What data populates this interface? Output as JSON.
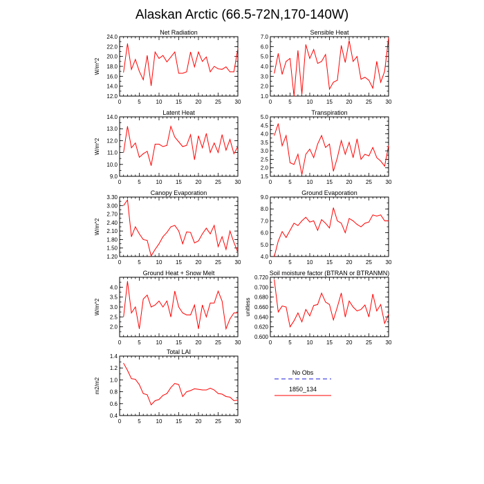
{
  "figure": {
    "title": "Alaskan Arctic (66.5-72N,170-140W)"
  },
  "legend": {
    "entries": [
      {
        "label": "No Obs",
        "color": "#8c8cf0",
        "dashed": true
      },
      {
        "label": "1850_134",
        "color": "#ff0000",
        "dashed": false
      }
    ]
  },
  "chart_data": [
    {
      "type": "line",
      "title": "Net Radiation",
      "ylabel": "W/m^2",
      "xlim": [
        0,
        30
      ],
      "ylim": [
        12,
        24
      ],
      "xticks": [
        0,
        5,
        10,
        15,
        20,
        25,
        30
      ],
      "yticks": [
        12,
        14,
        16,
        18,
        20,
        22,
        24
      ],
      "ytick_labels": [
        "12.0",
        "14.0",
        "16.0",
        "18.0",
        "20.0",
        "22.0",
        "24.0"
      ],
      "series": [
        {
          "name": "1850_134",
          "color": "#ff0000",
          "x": [
            1,
            2,
            3,
            4,
            5,
            6,
            7,
            8,
            9,
            10,
            11,
            12,
            13,
            14,
            15,
            16,
            17,
            18,
            19,
            20,
            21,
            22,
            23,
            24,
            25,
            26,
            27,
            28,
            29,
            30
          ],
          "values": [
            16.8,
            22.6,
            17.4,
            19.4,
            17.0,
            15.3,
            20.2,
            14.1,
            20.9,
            19.6,
            20.2,
            18.9,
            19.9,
            20.9,
            16.6,
            16.6,
            16.9,
            20.9,
            17.9,
            20.9,
            19.0,
            19.9,
            16.9,
            18.0,
            17.5,
            17.4,
            17.9,
            16.9,
            16.9,
            21.6
          ]
        }
      ]
    },
    {
      "type": "line",
      "title": "Sensible Heat",
      "ylabel": "",
      "xlim": [
        0,
        30
      ],
      "ylim": [
        1,
        7
      ],
      "xticks": [
        0,
        5,
        10,
        15,
        20,
        25,
        30
      ],
      "yticks": [
        1,
        2,
        3,
        4,
        5,
        6,
        7
      ],
      "ytick_labels": [
        "1.0",
        "2.0",
        "3.0",
        "4.0",
        "5.0",
        "6.0",
        "7.0"
      ],
      "series": [
        {
          "name": "1850_134",
          "color": "#ff0000",
          "x": [
            1,
            2,
            3,
            4,
            5,
            6,
            7,
            8,
            9,
            10,
            11,
            12,
            13,
            14,
            15,
            16,
            17,
            18,
            19,
            20,
            21,
            22,
            23,
            24,
            25,
            26,
            27,
            28,
            29,
            30
          ],
          "values": [
            3.3,
            5.3,
            3.2,
            4.5,
            4.8,
            1.0,
            5.6,
            1.2,
            6.2,
            4.8,
            5.7,
            4.3,
            4.5,
            5.2,
            1.7,
            2.4,
            2.6,
            6.1,
            4.4,
            6.6,
            4.5,
            5.0,
            2.7,
            2.9,
            2.6,
            1.8,
            4.5,
            2.4,
            3.5,
            6.9
          ]
        }
      ]
    },
    {
      "type": "line",
      "title": "Latent Heat",
      "ylabel": "W/m^2",
      "xlim": [
        0,
        30
      ],
      "ylim": [
        9,
        14
      ],
      "xticks": [
        0,
        5,
        10,
        15,
        20,
        25,
        30
      ],
      "yticks": [
        9,
        10,
        11,
        12,
        13,
        14
      ],
      "ytick_labels": [
        "9.0",
        "10.0",
        "11.0",
        "12.0",
        "13.0",
        "14.0"
      ],
      "series": [
        {
          "name": "1850_134",
          "color": "#ff0000",
          "x": [
            1,
            2,
            3,
            4,
            5,
            6,
            7,
            8,
            9,
            10,
            11,
            12,
            13,
            14,
            15,
            16,
            17,
            18,
            19,
            20,
            21,
            22,
            23,
            24,
            25,
            26,
            27,
            28,
            29,
            30
          ],
          "values": [
            11.0,
            13.2,
            11.4,
            11.8,
            10.6,
            10.9,
            11.1,
            9.9,
            11.7,
            11.7,
            11.5,
            11.6,
            13.2,
            12.3,
            11.9,
            11.5,
            11.6,
            12.5,
            10.4,
            12.4,
            11.4,
            12.6,
            11.0,
            11.8,
            11.0,
            12.5,
            11.2,
            12.1,
            10.9,
            11.5
          ]
        }
      ]
    },
    {
      "type": "line",
      "title": "Transpiration",
      "ylabel": "",
      "xlim": [
        0,
        30
      ],
      "ylim": [
        1.5,
        5.0
      ],
      "xticks": [
        0,
        5,
        10,
        15,
        20,
        25,
        30
      ],
      "yticks": [
        1.5,
        2.0,
        2.5,
        3.0,
        3.5,
        4.0,
        4.5,
        5.0
      ],
      "ytick_labels": [
        "1.5",
        "2.0",
        "2.5",
        "3.0",
        "3.5",
        "4.0",
        "4.5",
        "5.0"
      ],
      "series": [
        {
          "name": "1850_134",
          "color": "#ff0000",
          "x": [
            1,
            2,
            3,
            4,
            5,
            6,
            7,
            8,
            9,
            10,
            11,
            12,
            13,
            14,
            15,
            16,
            17,
            18,
            19,
            20,
            21,
            22,
            23,
            24,
            25,
            26,
            27,
            28,
            29,
            30
          ],
          "values": [
            3.9,
            4.6,
            3.3,
            3.9,
            2.3,
            2.2,
            2.8,
            1.6,
            2.8,
            3.1,
            2.6,
            3.4,
            3.9,
            3.2,
            3.4,
            1.8,
            2.6,
            3.6,
            2.8,
            3.5,
            2.6,
            3.7,
            2.5,
            2.8,
            2.7,
            3.2,
            2.6,
            2.4,
            2.1,
            3.3
          ]
        }
      ]
    },
    {
      "type": "line",
      "title": "Canopy Evaporation",
      "ylabel": "W/m^2",
      "xlim": [
        0,
        30
      ],
      "ylim": [
        1.2,
        3.3
      ],
      "xticks": [
        0,
        5,
        10,
        15,
        20,
        25,
        30
      ],
      "yticks": [
        1.2,
        1.5,
        1.8,
        2.1,
        2.4,
        2.7,
        3.0,
        3.3
      ],
      "ytick_labels": [
        "1.20",
        "1.50",
        "1.80",
        "2.10",
        "2.40",
        "2.70",
        "3.00",
        "3.30"
      ],
      "series": [
        {
          "name": "1850_134",
          "color": "#ff0000",
          "x": [
            1,
            2,
            3,
            4,
            5,
            6,
            7,
            8,
            9,
            10,
            11,
            12,
            13,
            14,
            15,
            16,
            17,
            18,
            19,
            20,
            21,
            22,
            23,
            24,
            25,
            26,
            27,
            28,
            29,
            30
          ],
          "values": [
            3.0,
            3.2,
            1.9,
            2.25,
            2.0,
            1.8,
            1.77,
            1.22,
            1.45,
            1.65,
            1.9,
            2.05,
            2.25,
            2.3,
            2.1,
            1.65,
            2.07,
            2.05,
            1.68,
            1.75,
            2.0,
            2.2,
            2.0,
            2.3,
            1.55,
            1.9,
            1.45,
            2.1,
            1.7,
            1.35
          ]
        }
      ]
    },
    {
      "type": "line",
      "title": "Ground Evaporation",
      "ylabel": "",
      "xlim": [
        0,
        30
      ],
      "ylim": [
        4,
        9
      ],
      "xticks": [
        0,
        5,
        10,
        15,
        20,
        25,
        30
      ],
      "yticks": [
        4,
        5,
        6,
        7,
        8,
        9
      ],
      "ytick_labels": [
        "4.0",
        "5.0",
        "6.0",
        "7.0",
        "8.0",
        "9.0"
      ],
      "series": [
        {
          "name": "1850_134",
          "color": "#ff0000",
          "x": [
            1,
            2,
            3,
            4,
            5,
            6,
            7,
            8,
            9,
            10,
            11,
            12,
            13,
            14,
            15,
            16,
            17,
            18,
            19,
            20,
            21,
            22,
            23,
            24,
            25,
            26,
            27,
            28,
            29,
            30
          ],
          "values": [
            4.0,
            5.3,
            6.1,
            5.6,
            6.2,
            6.8,
            6.6,
            7.0,
            7.3,
            6.9,
            7.0,
            6.2,
            7.1,
            6.8,
            6.4,
            8.1,
            7.0,
            6.8,
            6.0,
            7.2,
            7.0,
            6.7,
            6.5,
            6.8,
            6.9,
            7.5,
            7.4,
            7.5,
            7.0,
            7.0
          ]
        }
      ]
    },
    {
      "type": "line",
      "title": "Ground Heat + Snow Melt",
      "ylabel": "W/m^2",
      "xlim": [
        0,
        30
      ],
      "ylim": [
        1.5,
        4.5
      ],
      "xticks": [
        0,
        5,
        10,
        15,
        20,
        25,
        30
      ],
      "yticks": [
        2.0,
        2.5,
        3.0,
        3.5,
        4.0
      ],
      "ytick_labels": [
        "2.0",
        "2.5",
        "3.0",
        "3.5",
        "4.0"
      ],
      "series": [
        {
          "name": "1850_134",
          "color": "#ff0000",
          "x": [
            1,
            2,
            3,
            4,
            5,
            6,
            7,
            8,
            9,
            10,
            11,
            12,
            13,
            14,
            15,
            16,
            17,
            18,
            19,
            20,
            21,
            22,
            23,
            24,
            25,
            26,
            27,
            28,
            29,
            30
          ],
          "values": [
            2.5,
            4.3,
            2.7,
            3.0,
            1.9,
            3.4,
            3.6,
            3.0,
            3.1,
            3.3,
            3.0,
            3.3,
            2.5,
            3.8,
            3.0,
            2.7,
            2.6,
            2.6,
            3.1,
            1.9,
            3.1,
            2.5,
            3.2,
            3.2,
            3.8,
            3.3,
            1.9,
            2.4,
            2.7,
            2.7
          ]
        }
      ]
    },
    {
      "type": "line",
      "title": "Soil moisture factor (BTRAN or BTRANMN)",
      "ylabel": "unitless",
      "xlim": [
        0,
        30
      ],
      "ylim": [
        0.6,
        0.72
      ],
      "xticks": [
        0,
        5,
        10,
        15,
        20,
        25,
        30
      ],
      "yticks": [
        0.6,
        0.62,
        0.64,
        0.66,
        0.68,
        0.7,
        0.72
      ],
      "ytick_labels": [
        "0.600",
        "0.620",
        "0.640",
        "0.660",
        "0.680",
        "0.700",
        "0.720"
      ],
      "series": [
        {
          "name": "1850_134",
          "color": "#ff0000",
          "x": [
            1,
            2,
            3,
            4,
            5,
            6,
            7,
            8,
            9,
            10,
            11,
            12,
            13,
            14,
            15,
            16,
            17,
            18,
            19,
            20,
            21,
            22,
            23,
            24,
            25,
            26,
            27,
            28,
            29,
            30
          ],
          "values": [
            0.715,
            0.65,
            0.662,
            0.66,
            0.62,
            0.632,
            0.648,
            0.63,
            0.655,
            0.642,
            0.663,
            0.665,
            0.688,
            0.67,
            0.665,
            0.634,
            0.66,
            0.688,
            0.64,
            0.672,
            0.66,
            0.652,
            0.655,
            0.664,
            0.64,
            0.686,
            0.652,
            0.665,
            0.627,
            0.645
          ]
        }
      ]
    },
    {
      "type": "line",
      "title": "Total LAI",
      "ylabel": "m2/m2",
      "xlim": [
        0,
        30
      ],
      "ylim": [
        0.4,
        1.4
      ],
      "xticks": [
        0,
        5,
        10,
        15,
        20,
        25,
        30
      ],
      "yticks": [
        0.4,
        0.6,
        0.8,
        1.0,
        1.2,
        1.4
      ],
      "ytick_labels": [
        "0.4",
        "0.6",
        "0.8",
        "1.0",
        "1.2",
        "1.4"
      ],
      "series": [
        {
          "name": "1850_134",
          "color": "#ff0000",
          "x": [
            1,
            2,
            3,
            4,
            5,
            6,
            7,
            8,
            9,
            10,
            11,
            12,
            13,
            14,
            15,
            16,
            17,
            18,
            19,
            20,
            21,
            22,
            23,
            24,
            25,
            26,
            27,
            28,
            29,
            30
          ],
          "values": [
            1.28,
            1.16,
            1.02,
            1.01,
            0.92,
            0.77,
            0.75,
            0.58,
            0.65,
            0.67,
            0.74,
            0.77,
            0.87,
            0.94,
            0.92,
            0.72,
            0.8,
            0.82,
            0.85,
            0.84,
            0.83,
            0.83,
            0.86,
            0.83,
            0.77,
            0.76,
            0.72,
            0.71,
            0.65,
            0.66
          ]
        }
      ]
    }
  ]
}
